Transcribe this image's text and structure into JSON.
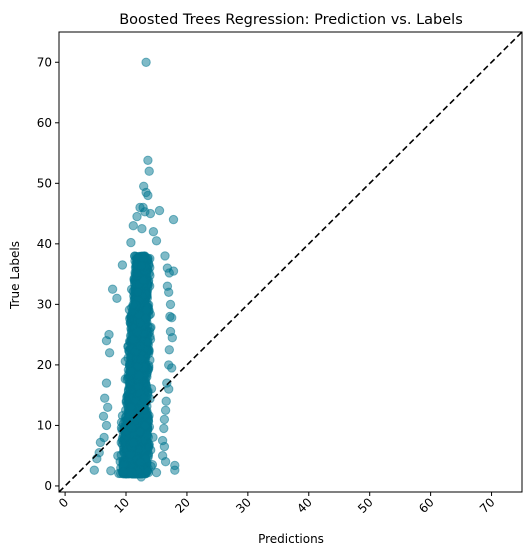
{
  "chart_data": {
    "type": "scatter",
    "title": "Boosted Trees Regression: Prediction vs. Labels",
    "xlabel": "Predictions",
    "ylabel": "True Labels",
    "xlim": [
      -1,
      75
    ],
    "ylim": [
      -1,
      75
    ],
    "xticks": [
      0,
      10,
      20,
      30,
      40,
      50,
      60,
      70
    ],
    "yticks": [
      0,
      10,
      20,
      30,
      40,
      50,
      60,
      70
    ],
    "xtick_rotation_deg": 45,
    "grid": false,
    "legend": "none",
    "series": [
      {
        "color": "#00758F",
        "alpha": 0.5,
        "marker": "circle",
        "points": [
          [
            13.3,
            70.0
          ],
          [
            13.6,
            53.8
          ],
          [
            13.8,
            52.0
          ],
          [
            12.9,
            49.5
          ],
          [
            13.3,
            48.5
          ],
          [
            13.6,
            48.0
          ],
          [
            12.3,
            46.0
          ],
          [
            12.8,
            46.0
          ],
          [
            13.1,
            45.3
          ],
          [
            14.0,
            45.0
          ],
          [
            11.8,
            44.5
          ],
          [
            15.5,
            45.5
          ],
          [
            17.8,
            44.0
          ],
          [
            11.2,
            43.0
          ],
          [
            12.6,
            42.5
          ],
          [
            14.5,
            42.0
          ],
          [
            10.8,
            40.2
          ],
          [
            15.0,
            40.5
          ],
          [
            16.4,
            38.0
          ],
          [
            9.4,
            36.5
          ],
          [
            16.8,
            36.0
          ],
          [
            17.8,
            35.5
          ],
          [
            17.1,
            35.2
          ],
          [
            7.8,
            32.5
          ],
          [
            16.8,
            33.0
          ],
          [
            17.0,
            32.0
          ],
          [
            8.5,
            31.0
          ],
          [
            17.3,
            30.0
          ],
          [
            17.2,
            28.0
          ],
          [
            17.5,
            27.8
          ],
          [
            7.2,
            25.0
          ],
          [
            17.3,
            25.5
          ],
          [
            17.6,
            24.5
          ],
          [
            6.8,
            24.0
          ],
          [
            7.3,
            22.0
          ],
          [
            17.1,
            22.5
          ],
          [
            17.0,
            20.0
          ],
          [
            17.5,
            19.5
          ],
          [
            6.8,
            17.0
          ],
          [
            16.7,
            17.0
          ],
          [
            17.0,
            16.0
          ],
          [
            6.5,
            14.5
          ],
          [
            16.6,
            14.0
          ],
          [
            7.0,
            13.0
          ],
          [
            16.5,
            12.5
          ],
          [
            6.3,
            11.5
          ],
          [
            16.3,
            11.0
          ],
          [
            6.8,
            10.0
          ],
          [
            16.2,
            9.5
          ],
          [
            6.4,
            8.0
          ],
          [
            16.0,
            7.5
          ],
          [
            5.8,
            7.2
          ],
          [
            16.3,
            6.5
          ],
          [
            5.6,
            5.5
          ],
          [
            16.0,
            5.0
          ],
          [
            5.2,
            4.5
          ],
          [
            16.5,
            4.0
          ],
          [
            4.8,
            2.6
          ],
          [
            18.0,
            3.4
          ],
          [
            18.0,
            2.6
          ],
          [
            12.5,
            1.5
          ],
          [
            7.5,
            2.5
          ],
          [
            9.5,
            2.3
          ],
          [
            11.0,
            2.2
          ],
          [
            13.5,
            2.4
          ],
          [
            15.0,
            2.2
          ]
        ]
      }
    ]
  },
  "reference_line": {
    "style": "dashed",
    "color": "#000000",
    "from": [
      -1,
      -1
    ],
    "to": [
      75,
      75
    ]
  },
  "cloud": {
    "center_x": 11.5,
    "x_spread": 1.8,
    "y_min": 2.0,
    "y_dense_max": 38.0,
    "count": 4000
  }
}
